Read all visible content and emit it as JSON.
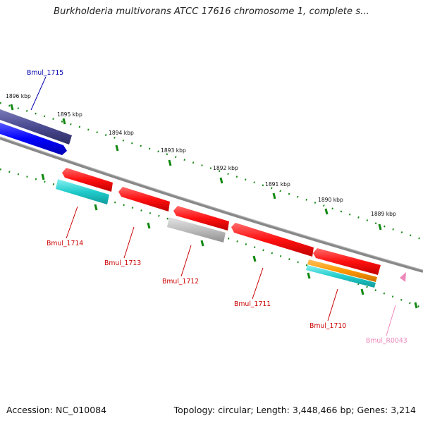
{
  "title": "Burkholderia multivorans ATCC 17616 chromosome 1, complete s...",
  "footer": {
    "accession": "Accession: NC_010084",
    "topology": "Topology: circular; Length: 3,448,466 bp; Genes: 3,214"
  },
  "ticks": [
    {
      "label": "1896 kbp"
    },
    {
      "label": "1895 kbp"
    },
    {
      "label": "1894 kbp"
    },
    {
      "label": "1893 kbp"
    },
    {
      "label": "1892 kbp"
    },
    {
      "label": "1891 kbp"
    },
    {
      "label": "1890 kbp"
    },
    {
      "label": "1889 kbp"
    }
  ],
  "features": [
    {
      "name": "Bmul_1715",
      "color": "#0000aa"
    },
    {
      "name": "Bmul_1714",
      "color": "#cc0000"
    },
    {
      "name": "Bmul_1713",
      "color": "#cc0000"
    },
    {
      "name": "Bmul_1712",
      "color": "#cc0000"
    },
    {
      "name": "Bmul_1711",
      "color": "#cc0000"
    },
    {
      "name": "Bmul_1710",
      "color": "#cc0000"
    },
    {
      "name": "Bmul_R0043",
      "color": "#ee88bb"
    }
  ],
  "colors": {
    "cds": "#ff1a1a",
    "gene_forward": "#0000ff",
    "gene_dark": "#4a4a90",
    "rna": "#22cccc",
    "pseudo": "#bbbbbb",
    "trna": "#ff9900",
    "backbone": "#888888",
    "tick": "#118811"
  }
}
